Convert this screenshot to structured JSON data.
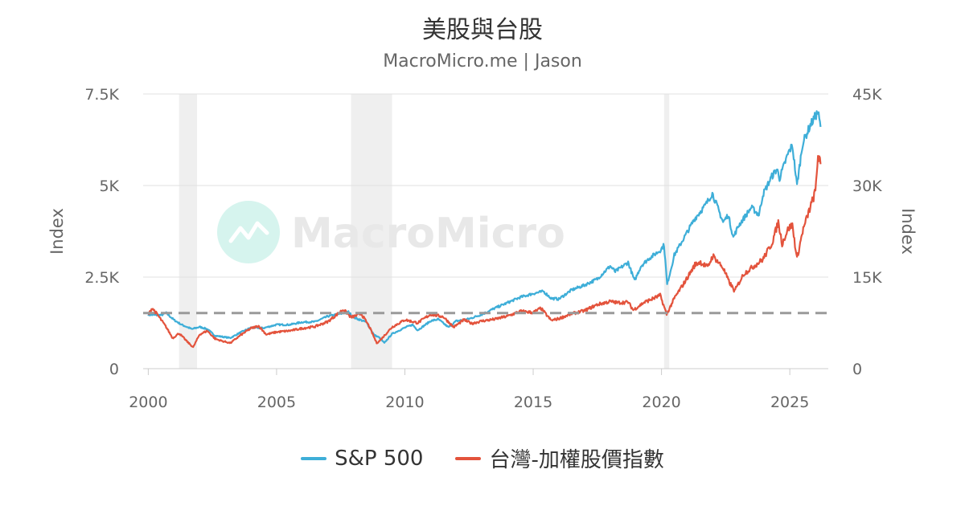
{
  "colors": {
    "sp500": "#3eaed8",
    "taiex": "#e3533c",
    "recession": "#efefef",
    "reference_line": "#9a9a9a",
    "grid": "#e0e0e0",
    "axis_text": "#666666",
    "watermark": "#e8e8e8",
    "watermark_icon_bg": "#d6f4ee"
  },
  "watermark": {
    "text": "MacroMicro",
    "icon": "chart-logo-icon"
  },
  "chart_data": {
    "type": "line",
    "title": "美股與台股",
    "subtitle": "MacroMicro.me | Jason",
    "x_ticks": [
      2000,
      2005,
      2010,
      2015,
      2020,
      2025
    ],
    "xlim": [
      1999.8,
      2026.5
    ],
    "y_left": {
      "label": "Index",
      "ylim": [
        0,
        7500
      ],
      "ticks": [
        0,
        2500,
        5000,
        7500
      ],
      "tick_labels": [
        "0",
        "2.5K",
        "5K",
        "7.5K"
      ]
    },
    "y_right": {
      "label": "Index",
      "ylim": [
        0,
        45000
      ],
      "ticks": [
        0,
        15000,
        30000,
        45000
      ],
      "tick_labels": [
        "0",
        "15K",
        "30K",
        "45K"
      ]
    },
    "reference_line": {
      "axis": "left",
      "value": 1520,
      "style": "dashed"
    },
    "recession_bands": [
      [
        2001.2,
        2001.9
      ],
      [
        2007.9,
        2009.5
      ],
      [
        2020.1,
        2020.3
      ]
    ],
    "legend_position": "bottom",
    "series": [
      {
        "name": "S&P 500",
        "axis": "left",
        "points": [
          [
            2000.0,
            1470
          ],
          [
            2000.5,
            1460
          ],
          [
            2000.7,
            1520
          ],
          [
            2001.0,
            1330
          ],
          [
            2001.3,
            1200
          ],
          [
            2001.7,
            1080
          ],
          [
            2002.0,
            1140
          ],
          [
            2002.3,
            1080
          ],
          [
            2002.6,
            900
          ],
          [
            2002.8,
            880
          ],
          [
            2003.0,
            860
          ],
          [
            2003.2,
            840
          ],
          [
            2003.6,
            990
          ],
          [
            2004.0,
            1120
          ],
          [
            2004.5,
            1110
          ],
          [
            2005.0,
            1200
          ],
          [
            2005.5,
            1200
          ],
          [
            2006.0,
            1270
          ],
          [
            2006.5,
            1280
          ],
          [
            2007.0,
            1430
          ],
          [
            2007.5,
            1500
          ],
          [
            2007.8,
            1550
          ],
          [
            2008.0,
            1400
          ],
          [
            2008.5,
            1270
          ],
          [
            2008.8,
            920
          ],
          [
            2009.0,
            850
          ],
          [
            2009.2,
            700
          ],
          [
            2009.5,
            950
          ],
          [
            2010.0,
            1120
          ],
          [
            2010.3,
            1200
          ],
          [
            2010.5,
            1050
          ],
          [
            2011.0,
            1300
          ],
          [
            2011.3,
            1350
          ],
          [
            2011.7,
            1130
          ],
          [
            2012.0,
            1300
          ],
          [
            2012.5,
            1360
          ],
          [
            2013.0,
            1480
          ],
          [
            2013.5,
            1650
          ],
          [
            2014.0,
            1800
          ],
          [
            2014.5,
            1950
          ],
          [
            2015.0,
            2050
          ],
          [
            2015.4,
            2110
          ],
          [
            2015.7,
            1920
          ],
          [
            2016.0,
            1900
          ],
          [
            2016.5,
            2150
          ],
          [
            2017.0,
            2280
          ],
          [
            2017.5,
            2450
          ],
          [
            2018.0,
            2800
          ],
          [
            2018.2,
            2650
          ],
          [
            2018.7,
            2900
          ],
          [
            2018.95,
            2400
          ],
          [
            2019.2,
            2800
          ],
          [
            2019.5,
            3000
          ],
          [
            2019.95,
            3230
          ],
          [
            2020.1,
            3380
          ],
          [
            2020.22,
            2300
          ],
          [
            2020.5,
            3100
          ],
          [
            2020.9,
            3600
          ],
          [
            2021.3,
            4100
          ],
          [
            2021.7,
            4450
          ],
          [
            2021.98,
            4790
          ],
          [
            2022.4,
            4000
          ],
          [
            2022.6,
            4200
          ],
          [
            2022.8,
            3580
          ],
          [
            2023.0,
            3900
          ],
          [
            2023.5,
            4400
          ],
          [
            2023.8,
            4200
          ],
          [
            2023.95,
            4750
          ],
          [
            2024.3,
            5250
          ],
          [
            2024.5,
            5450
          ],
          [
            2024.6,
            5200
          ],
          [
            2024.95,
            5900
          ],
          [
            2025.1,
            6100
          ],
          [
            2025.28,
            5000
          ],
          [
            2025.5,
            6150
          ],
          [
            2025.8,
            6650
          ],
          [
            2026.0,
            6900
          ],
          [
            2026.1,
            7000
          ],
          [
            2026.2,
            6600
          ]
        ]
      },
      {
        "name": "台灣-加權股價指數",
        "axis": "right",
        "points": [
          [
            2000.0,
            8800
          ],
          [
            2000.15,
            9950
          ],
          [
            2000.4,
            8600
          ],
          [
            2000.7,
            6800
          ],
          [
            2000.95,
            5000
          ],
          [
            2001.2,
            5800
          ],
          [
            2001.5,
            4500
          ],
          [
            2001.75,
            3500
          ],
          [
            2002.0,
            5600
          ],
          [
            2002.3,
            6200
          ],
          [
            2002.6,
            4900
          ],
          [
            2002.9,
            4500
          ],
          [
            2003.2,
            4200
          ],
          [
            2003.6,
            5500
          ],
          [
            2004.0,
            6600
          ],
          [
            2004.3,
            7000
          ],
          [
            2004.6,
            5600
          ],
          [
            2005.0,
            6000
          ],
          [
            2005.5,
            6200
          ],
          [
            2006.0,
            6600
          ],
          [
            2006.5,
            6900
          ],
          [
            2007.0,
            7700
          ],
          [
            2007.6,
            9700
          ],
          [
            2007.9,
            8400
          ],
          [
            2008.3,
            9000
          ],
          [
            2008.6,
            7000
          ],
          [
            2008.9,
            4200
          ],
          [
            2009.0,
            4500
          ],
          [
            2009.5,
            6800
          ],
          [
            2010.0,
            8000
          ],
          [
            2010.5,
            7500
          ],
          [
            2011.0,
            8900
          ],
          [
            2011.5,
            8500
          ],
          [
            2011.9,
            6800
          ],
          [
            2012.3,
            8000
          ],
          [
            2012.6,
            7400
          ],
          [
            2013.0,
            7800
          ],
          [
            2013.5,
            8100
          ],
          [
            2014.0,
            8600
          ],
          [
            2014.5,
            9400
          ],
          [
            2015.0,
            9200
          ],
          [
            2015.3,
            9900
          ],
          [
            2015.7,
            7900
          ],
          [
            2016.0,
            8200
          ],
          [
            2016.5,
            9000
          ],
          [
            2017.0,
            9500
          ],
          [
            2017.5,
            10500
          ],
          [
            2018.0,
            11000
          ],
          [
            2018.3,
            10800
          ],
          [
            2018.7,
            10900
          ],
          [
            2018.9,
            9600
          ],
          [
            2019.3,
            10800
          ],
          [
            2019.95,
            12000
          ],
          [
            2020.2,
            8900
          ],
          [
            2020.5,
            11500
          ],
          [
            2020.95,
            14500
          ],
          [
            2021.3,
            17000
          ],
          [
            2021.5,
            17500
          ],
          [
            2021.8,
            16600
          ],
          [
            2022.0,
            18500
          ],
          [
            2022.4,
            16500
          ],
          [
            2022.6,
            14500
          ],
          [
            2022.85,
            12700
          ],
          [
            2023.2,
            15500
          ],
          [
            2023.6,
            16800
          ],
          [
            2023.95,
            17900
          ],
          [
            2024.3,
            20500
          ],
          [
            2024.55,
            24000
          ],
          [
            2024.7,
            20500
          ],
          [
            2024.95,
            23000
          ],
          [
            2025.1,
            23500
          ],
          [
            2025.28,
            18000
          ],
          [
            2025.5,
            22500
          ],
          [
            2025.8,
            26500
          ],
          [
            2026.0,
            29000
          ],
          [
            2026.1,
            35000
          ],
          [
            2026.2,
            33500
          ]
        ]
      }
    ]
  }
}
